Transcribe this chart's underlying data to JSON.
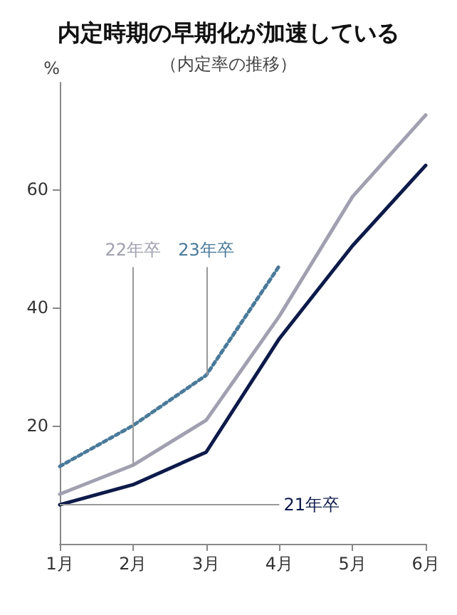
{
  "chart_data": {
    "type": "line",
    "title": "内定時期の早期化が加速している",
    "subtitle": "（内定率の推移）",
    "ylabel": "%",
    "categories": [
      "1月",
      "2月",
      "3月",
      "4月",
      "5月",
      "6月"
    ],
    "series": [
      {
        "name": "21年卒",
        "color": "#0d1a4a",
        "values": [
          6.6,
          10,
          15.5,
          34.7,
          50.4,
          64
        ],
        "line_style": "solid"
      },
      {
        "name": "22年卒",
        "color": "#a0a0b0",
        "values": [
          8.4,
          13.3,
          20.9,
          38.5,
          58.7,
          72.5
        ],
        "line_style": "solid"
      },
      {
        "name": "23年卒",
        "color": "#4a7a9a",
        "values": [
          13.1,
          20,
          28.5,
          47,
          null,
          null
        ],
        "line_style": "dotted"
      }
    ],
    "ylim": [
      0,
      78
    ],
    "yticks": [
      20,
      40,
      60
    ],
    "grid": false,
    "legend": false,
    "marker": "none"
  }
}
